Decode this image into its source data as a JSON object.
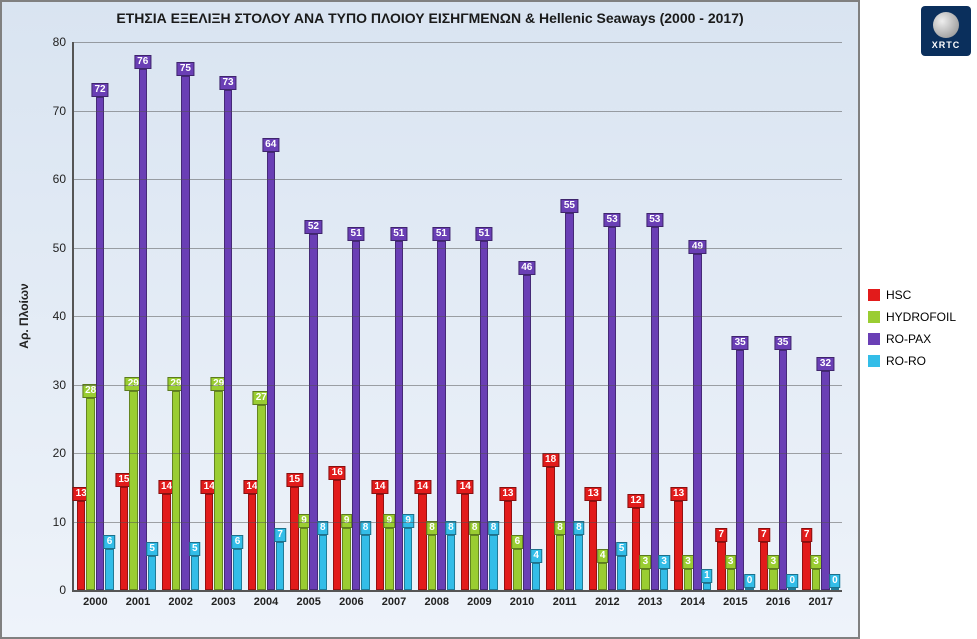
{
  "title": "ΕΤΗΣΙΑ ΕΞΕΛΙΞΗ ΣΤΟΛΟΥ ΑΝΑ ΤΥΠΟ ΠΛΟΙΟΥ ΕΙΣΗΓΜΕΝΩΝ & Hellenic Seaways (2000 - 2017)",
  "ylabel": "Αρ. Πλοίων",
  "logo_text": "XRTC",
  "chart": {
    "type": "bar",
    "ylim": [
      0,
      80
    ],
    "ytick_step": 10,
    "categories": [
      "2000",
      "2001",
      "2002",
      "2003",
      "2004",
      "2005",
      "2006",
      "2007",
      "2008",
      "2009",
      "2010",
      "2011",
      "2012",
      "2013",
      "2014",
      "2015",
      "2016",
      "2017"
    ],
    "series": [
      {
        "name": "HSC",
        "color": "#e21b1b",
        "values": [
          13,
          15,
          14,
          14,
          14,
          15,
          16,
          14,
          14,
          14,
          13,
          18,
          13,
          12,
          13,
          7,
          7,
          7
        ]
      },
      {
        "name": "HYDROFOIL",
        "color": "#9acd32",
        "values": [
          28,
          29,
          29,
          29,
          27,
          9,
          9,
          9,
          8,
          8,
          6,
          8,
          4,
          3,
          3,
          3,
          3,
          3
        ]
      },
      {
        "name": "RO-PAX",
        "color": "#6a3fb5",
        "values": [
          72,
          76,
          75,
          73,
          64,
          52,
          51,
          51,
          51,
          51,
          46,
          55,
          53,
          53,
          49,
          35,
          35,
          32
        ]
      },
      {
        "name": "RO-RO",
        "color": "#33bde8",
        "values": [
          6,
          5,
          5,
          6,
          7,
          8,
          8,
          9,
          8,
          8,
          4,
          8,
          5,
          3,
          1,
          0,
          0,
          0
        ]
      }
    ],
    "grid_color": "#888",
    "background_top": "#d9e4f1",
    "background_bottom": "#eef3fa"
  }
}
